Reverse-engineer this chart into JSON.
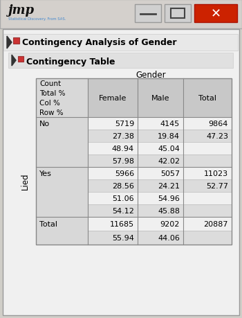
{
  "title1": "Contingency Analysis of Gender",
  "title2": "Contingency Table",
  "col_header_label": "Gender",
  "row_variable": "Lied",
  "no_data": {
    "female": [
      "5719",
      "27.38",
      "48.94",
      "57.98"
    ],
    "male": [
      "4145",
      "19.84",
      "45.04",
      "42.02"
    ],
    "total": [
      "9864",
      "47.23",
      "",
      ""
    ]
  },
  "yes_data": {
    "female": [
      "5966",
      "28.56",
      "51.06",
      "54.12"
    ],
    "male": [
      "5057",
      "24.21",
      "54.96",
      "45.88"
    ],
    "total": [
      "11023",
      "52.77",
      "",
      ""
    ]
  },
  "total_data": {
    "female": [
      "11685",
      "55.94",
      "",
      ""
    ],
    "male": [
      "9202",
      "44.06",
      "",
      ""
    ],
    "total": [
      "20887",
      "",
      "",
      ""
    ]
  },
  "window_outer_bg": "#d0cec8",
  "titlebar_bg": "#d4d0cc",
  "content_bg": "#f0f0f0",
  "title1_bg": "#e8e8e8",
  "title2_bg": "#e0e0e0",
  "table_label_bg": "#d8d8d8",
  "table_header_bg": "#c8c8c8",
  "cell_white": "#ffffff",
  "cell_lgray": "#d8d8d8",
  "subrow_dark": "#dcdcdc",
  "subrow_light": "#f0f0f0",
  "btn_gray": "#d0d0d0",
  "btn_red": "#cc2200",
  "text_black": "#000000",
  "text_blue": "#4488cc",
  "border_dark": "#888888",
  "border_light": "#bbbbbb"
}
